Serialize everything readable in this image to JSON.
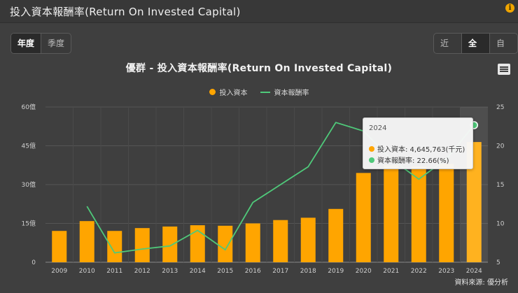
{
  "page": {
    "title": "投入資本報酬率(Return On Invested Capital)"
  },
  "period_tabs": [
    {
      "label": "年度",
      "active": true
    },
    {
      "label": "季度",
      "active": false
    }
  ],
  "range_tabs": [
    {
      "label": "近期",
      "active": false
    },
    {
      "label": "全部",
      "active": true
    },
    {
      "label": "自訂",
      "active": false
    }
  ],
  "chart": {
    "title": "優群 - 投入資本報酬率(Return On Invested Capital)",
    "legend": [
      {
        "label": "投入資本",
        "color": "#ffa500",
        "marker": "circle"
      },
      {
        "label": "資本報酬率",
        "color": "#4fc97a",
        "marker": "line"
      }
    ],
    "menu_icon": "hamburger-menu-icon"
  },
  "tooltip": {
    "title": "2024",
    "row1": "投入資本: 4,645,763(千元)",
    "row2": "資本報酬率: 22.66(%)"
  },
  "source": "資料來源: 優分析",
  "chart_data": {
    "type": "bar",
    "categories": [
      "2009",
      "2010",
      "2011",
      "2012",
      "2013",
      "2014",
      "2015",
      "2016",
      "2017",
      "2018",
      "2019",
      "2020",
      "2021",
      "2022",
      "2023",
      "2024"
    ],
    "left_axis": {
      "ylim": [
        0,
        60
      ],
      "ticks": [
        "0",
        "15億",
        "30億",
        "45億",
        "60億"
      ],
      "tick_values": [
        0,
        15,
        30,
        45,
        60
      ]
    },
    "right_axis": {
      "ylim": [
        5,
        25
      ],
      "ticks": [
        "5",
        "10",
        "15",
        "20",
        "25"
      ],
      "tick_values": [
        5,
        10,
        15,
        20,
        25
      ]
    },
    "series": [
      {
        "name": "投入資本",
        "type": "bar",
        "axis": "left",
        "color": "#ffa500",
        "values": [
          12.1,
          15.9,
          12.1,
          13.2,
          13.8,
          14.3,
          14.1,
          15.0,
          16.3,
          17.2,
          20.6,
          34.5,
          37.5,
          37.0,
          38.0,
          46.46
        ]
      },
      {
        "name": "資本報酬率",
        "type": "line",
        "axis": "right",
        "color": "#4fc97a",
        "values": [
          null,
          12.2,
          6.2,
          6.7,
          7.1,
          9.1,
          6.6,
          12.7,
          15.0,
          17.3,
          23.0,
          21.9,
          18.3,
          15.7,
          18.3,
          22.66
        ]
      }
    ],
    "highlight_index": 15,
    "grid": true
  }
}
